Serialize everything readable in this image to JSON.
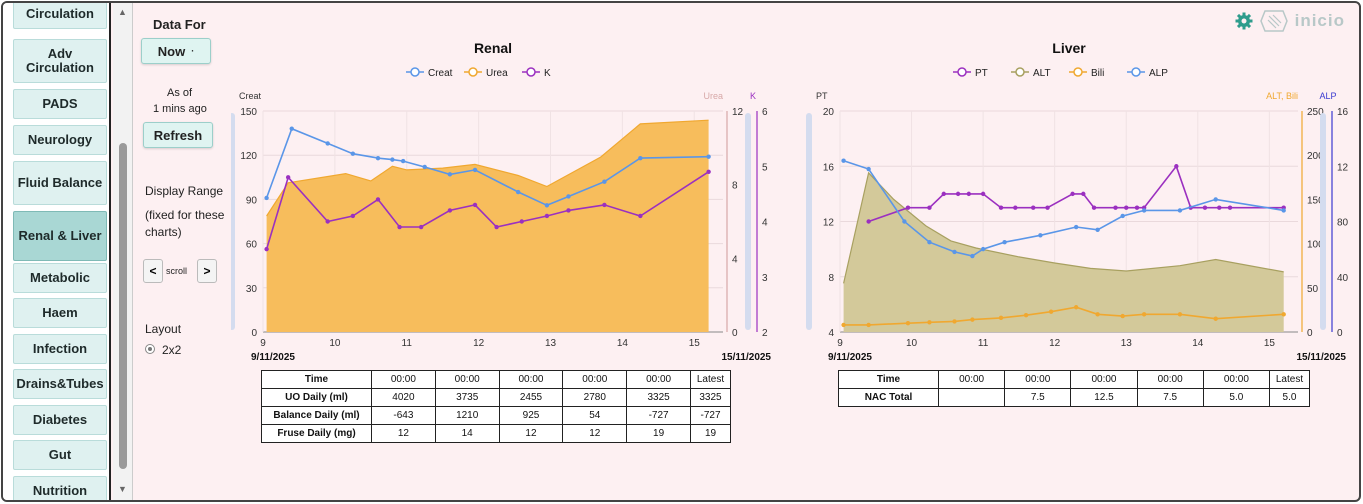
{
  "sidebar": {
    "items": [
      {
        "label": "Circulation"
      },
      {
        "label": "Adv Circulation"
      },
      {
        "label": "PADS"
      },
      {
        "label": "Neurology"
      },
      {
        "label": "Fluid Balance"
      },
      {
        "label": "Renal & Liver",
        "active": true
      },
      {
        "label": "Metabolic"
      },
      {
        "label": "Haem"
      },
      {
        "label": "Infection"
      },
      {
        "label": "Drains&Tubes"
      },
      {
        "label": "Diabetes"
      },
      {
        "label": "Gut"
      },
      {
        "label": "Nutrition"
      }
    ]
  },
  "controls": {
    "data_for_label": "Data For",
    "now_label": "Now",
    "as_of_label": "As of",
    "age_label": "1 mins ago",
    "refresh_label": "Refresh",
    "display_range_label": "Display Range",
    "fixed_note": "(fixed for these charts)",
    "prev_label": "<",
    "scroll_label": "scroll",
    "next_label": ">",
    "layout_label": "Layout",
    "layout_option": "2x2"
  },
  "logo": {
    "text": "inicio"
  },
  "renal_chart": {
    "title": "Renal",
    "legend": [
      {
        "name": "Creat",
        "color": "#5a96e8"
      },
      {
        "name": "Urea",
        "color": "#f0a830"
      },
      {
        "name": "K",
        "color": "#9b30c0"
      }
    ],
    "left_axis_label": "Creat",
    "right_axis1_label": "Urea",
    "right_axis2_label": "K",
    "left_ticks": [
      "0",
      "30",
      "60",
      "90",
      "120",
      "150"
    ],
    "right1_ticks": [
      "0",
      "4",
      "8",
      "12"
    ],
    "right2_ticks": [
      "2",
      "3",
      "4",
      "5",
      "6"
    ],
    "x_ticks": [
      "9",
      "10",
      "11",
      "12",
      "13",
      "14",
      "15"
    ],
    "start_date": "9/11/2025",
    "end_date": "15/11/2025"
  },
  "liver_chart": {
    "title": "Liver",
    "legend": [
      {
        "name": "PT",
        "color": "#9b30c0"
      },
      {
        "name": "ALT",
        "color": "#a8a060"
      },
      {
        "name": "Bili",
        "color": "#f0a830"
      },
      {
        "name": "ALP",
        "color": "#5a96e8"
      }
    ],
    "left_axis_label": "PT",
    "right_axis1_label": "ALT, Bili",
    "right_axis2_label": "ALP",
    "left_ticks": [
      "4",
      "8",
      "12",
      "16",
      "20"
    ],
    "right1_ticks": [
      "0",
      "50",
      "100",
      "150",
      "200",
      "250"
    ],
    "right2_ticks": [
      "0",
      "40",
      "80",
      "12",
      "16"
    ],
    "x_ticks": [
      "9",
      "10",
      "11",
      "12",
      "13",
      "14",
      "15"
    ],
    "start_date": "9/11/2025",
    "end_date": "15/11/2025"
  },
  "chart_data": [
    {
      "type": "line",
      "title": "Renal",
      "xlabel": "",
      "xlim": [
        9,
        15.4
      ],
      "series": [
        {
          "name": "Creat",
          "axis": "left",
          "ylim": [
            0,
            150
          ],
          "x": [
            9.05,
            9.4,
            9.9,
            10.25,
            10.6,
            10.8,
            10.95,
            11.25,
            11.6,
            11.95,
            12.55,
            12.95,
            13.25,
            13.75,
            14.25,
            15.2
          ],
          "y": [
            91,
            138,
            128,
            121,
            118,
            117,
            116,
            112,
            107,
            110,
            95,
            86,
            92,
            102,
            118,
            119
          ]
        },
        {
          "name": "Urea",
          "axis": "right1",
          "ylim": [
            0,
            12
          ],
          "style": "area",
          "x": [
            9.05,
            9.35,
            10.15,
            10.5,
            10.8,
            11.0,
            11.5,
            11.95,
            12.55,
            12.95,
            13.7,
            14.25,
            15.2
          ],
          "y": [
            6.3,
            8.1,
            8.6,
            8.2,
            9.0,
            8.8,
            8.9,
            9.1,
            8.5,
            7.9,
            9.5,
            11.3,
            11.5
          ]
        },
        {
          "name": "K",
          "axis": "right2",
          "ylim": [
            2,
            6
          ],
          "x": [
            9.05,
            9.35,
            9.9,
            10.25,
            10.6,
            10.9,
            11.2,
            11.6,
            11.95,
            12.25,
            12.6,
            12.95,
            13.25,
            13.75,
            14.25,
            15.2
          ],
          "y": [
            3.5,
            4.8,
            4.0,
            4.1,
            4.4,
            3.9,
            3.9,
            4.2,
            4.3,
            3.9,
            4.0,
            4.1,
            4.2,
            4.3,
            4.1,
            4.9
          ]
        }
      ]
    },
    {
      "type": "line",
      "title": "Liver",
      "xlabel": "",
      "xlim": [
        9,
        15.4
      ],
      "series": [
        {
          "name": "PT",
          "axis": "left",
          "ylim": [
            4,
            20
          ],
          "x": [
            9.4,
            9.95,
            10.25,
            10.45,
            10.65,
            10.8,
            11.0,
            11.25,
            11.45,
            11.7,
            11.9,
            12.25,
            12.4,
            12.55,
            12.85,
            13.0,
            13.15,
            13.25,
            13.7,
            13.9,
            14.1,
            14.3,
            14.45,
            15.2
          ],
          "y": [
            12,
            13,
            13,
            14,
            14,
            14,
            14,
            13,
            13,
            13,
            13,
            14,
            14,
            13,
            13,
            13,
            13,
            13,
            16,
            13,
            13,
            13,
            13,
            13
          ]
        },
        {
          "name": "ALT",
          "axis": "right1",
          "ylim": [
            0,
            250
          ],
          "style": "area",
          "x": [
            9.05,
            9.4,
            9.75,
            10.2,
            10.55,
            10.9,
            11.5,
            12.0,
            12.5,
            13.0,
            13.75,
            14.25,
            15.2
          ],
          "y": [
            55,
            180,
            150,
            120,
            103,
            95,
            85,
            78,
            72,
            69,
            75,
            82,
            68
          ]
        },
        {
          "name": "Bili",
          "axis": "right1",
          "ylim": [
            0,
            250
          ],
          "x": [
            9.05,
            9.4,
            9.95,
            10.25,
            10.6,
            10.85,
            11.25,
            11.6,
            11.95,
            12.3,
            12.6,
            12.95,
            13.25,
            13.75,
            14.25,
            15.2
          ],
          "y": [
            8,
            8,
            10,
            11,
            12,
            14,
            16,
            19,
            23,
            28,
            20,
            18,
            20,
            20,
            15,
            20
          ]
        },
        {
          "name": "ALP",
          "axis": "right2",
          "ylim": [
            0,
            160
          ],
          "x": [
            9.05,
            9.4,
            9.9,
            10.25,
            10.6,
            10.85,
            11.0,
            11.3,
            11.8,
            12.3,
            12.6,
            12.95,
            13.25,
            13.75,
            14.25,
            15.2
          ],
          "y": [
            124,
            118,
            80,
            65,
            58,
            55,
            60,
            65,
            70,
            76,
            74,
            84,
            88,
            88,
            96,
            88
          ]
        }
      ]
    },
    {
      "type": "table",
      "title": "Renal table",
      "columns": [
        "Time",
        "00:00",
        "00:00",
        "00:00",
        "00:00",
        "00:00",
        "Latest"
      ],
      "rows": [
        [
          "UO Daily (ml)",
          "4020",
          "3735",
          "2455",
          "2780",
          "3325",
          "3325"
        ],
        [
          "Balance Daily (ml)",
          "-643",
          "1210",
          "925",
          "54",
          "-727",
          "-727"
        ],
        [
          "Fruse Daily (mg)",
          "12",
          "14",
          "12",
          "12",
          "19",
          "19"
        ]
      ]
    },
    {
      "type": "table",
      "title": "Liver table",
      "columns": [
        "Time",
        "00:00",
        "00:00",
        "00:00",
        "00:00",
        "00:00",
        "Latest"
      ],
      "rows": [
        [
          "NAC Total",
          "",
          "7.5",
          "12.5",
          "7.5",
          "5.0",
          "5.0"
        ]
      ]
    }
  ]
}
